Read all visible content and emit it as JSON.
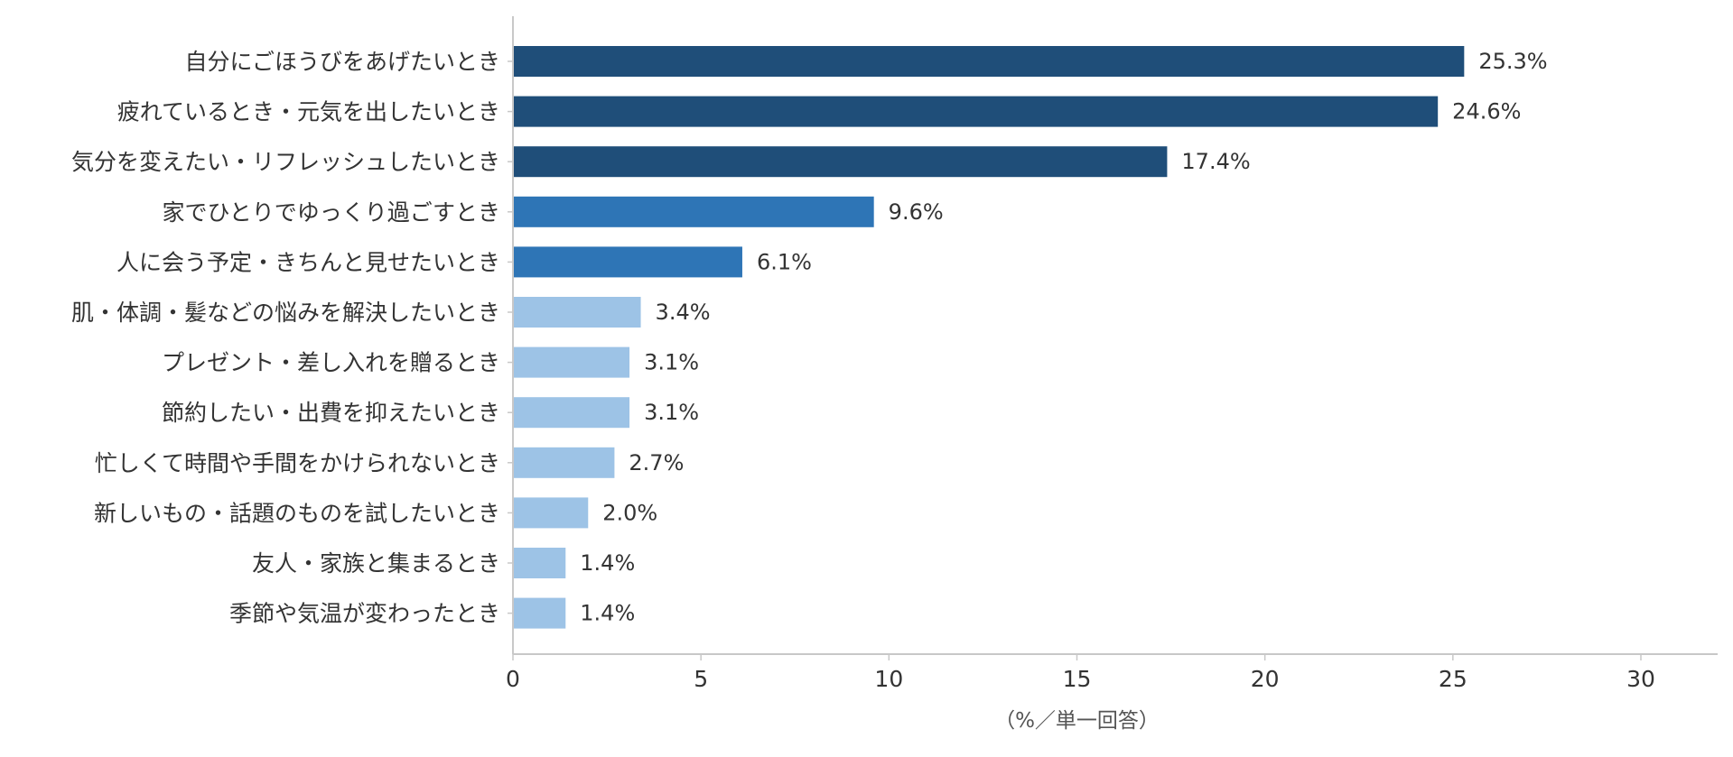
{
  "chart_data": {
    "type": "bar",
    "orientation": "horizontal",
    "categories": [
      "自分にごほうびをあげたいとき",
      "疲れているとき・元気を出したいとき",
      "気分を変えたい・リフレッシュしたいとき",
      "家でひとりでゆっくり過ごすとき",
      "人に会う予定・きちんと見せたいとき",
      "肌・体調・髪などの悩みを解決したいとき",
      "プレゼント・差し入れを贈るとき",
      "節約したい・出費を抑えたいとき",
      "忙しくて時間や手間をかけられないとき",
      "新しいもの・話題のものを試したいとき",
      "友人・家族と集まるとき",
      "季節や気温が変わったとき"
    ],
    "values": [
      25.3,
      24.6,
      17.4,
      9.6,
      6.1,
      3.4,
      3.1,
      3.1,
      2.7,
      2.0,
      1.4,
      1.4
    ],
    "value_labels": [
      "25.3%",
      "24.6%",
      "17.4%",
      "9.6%",
      "6.1%",
      "3.4%",
      "3.1%",
      "3.1%",
      "2.7%",
      "2.0%",
      "1.4%",
      "1.4%"
    ],
    "bar_colors": [
      "#1f4e79",
      "#1f4e79",
      "#1f4e79",
      "#2e75b6",
      "#2e75b6",
      "#9dc3e6",
      "#9dc3e6",
      "#9dc3e6",
      "#9dc3e6",
      "#9dc3e6",
      "#9dc3e6",
      "#9dc3e6"
    ],
    "xlabel": "（%／単一回答）",
    "xlim": [
      0,
      32
    ],
    "xticks": [
      0,
      5,
      10,
      15,
      20,
      25,
      30
    ],
    "xtick_labels": [
      "0",
      "5",
      "10",
      "15",
      "20",
      "25",
      "30"
    ],
    "grid": false,
    "axis_color": "#c8c8c8"
  }
}
